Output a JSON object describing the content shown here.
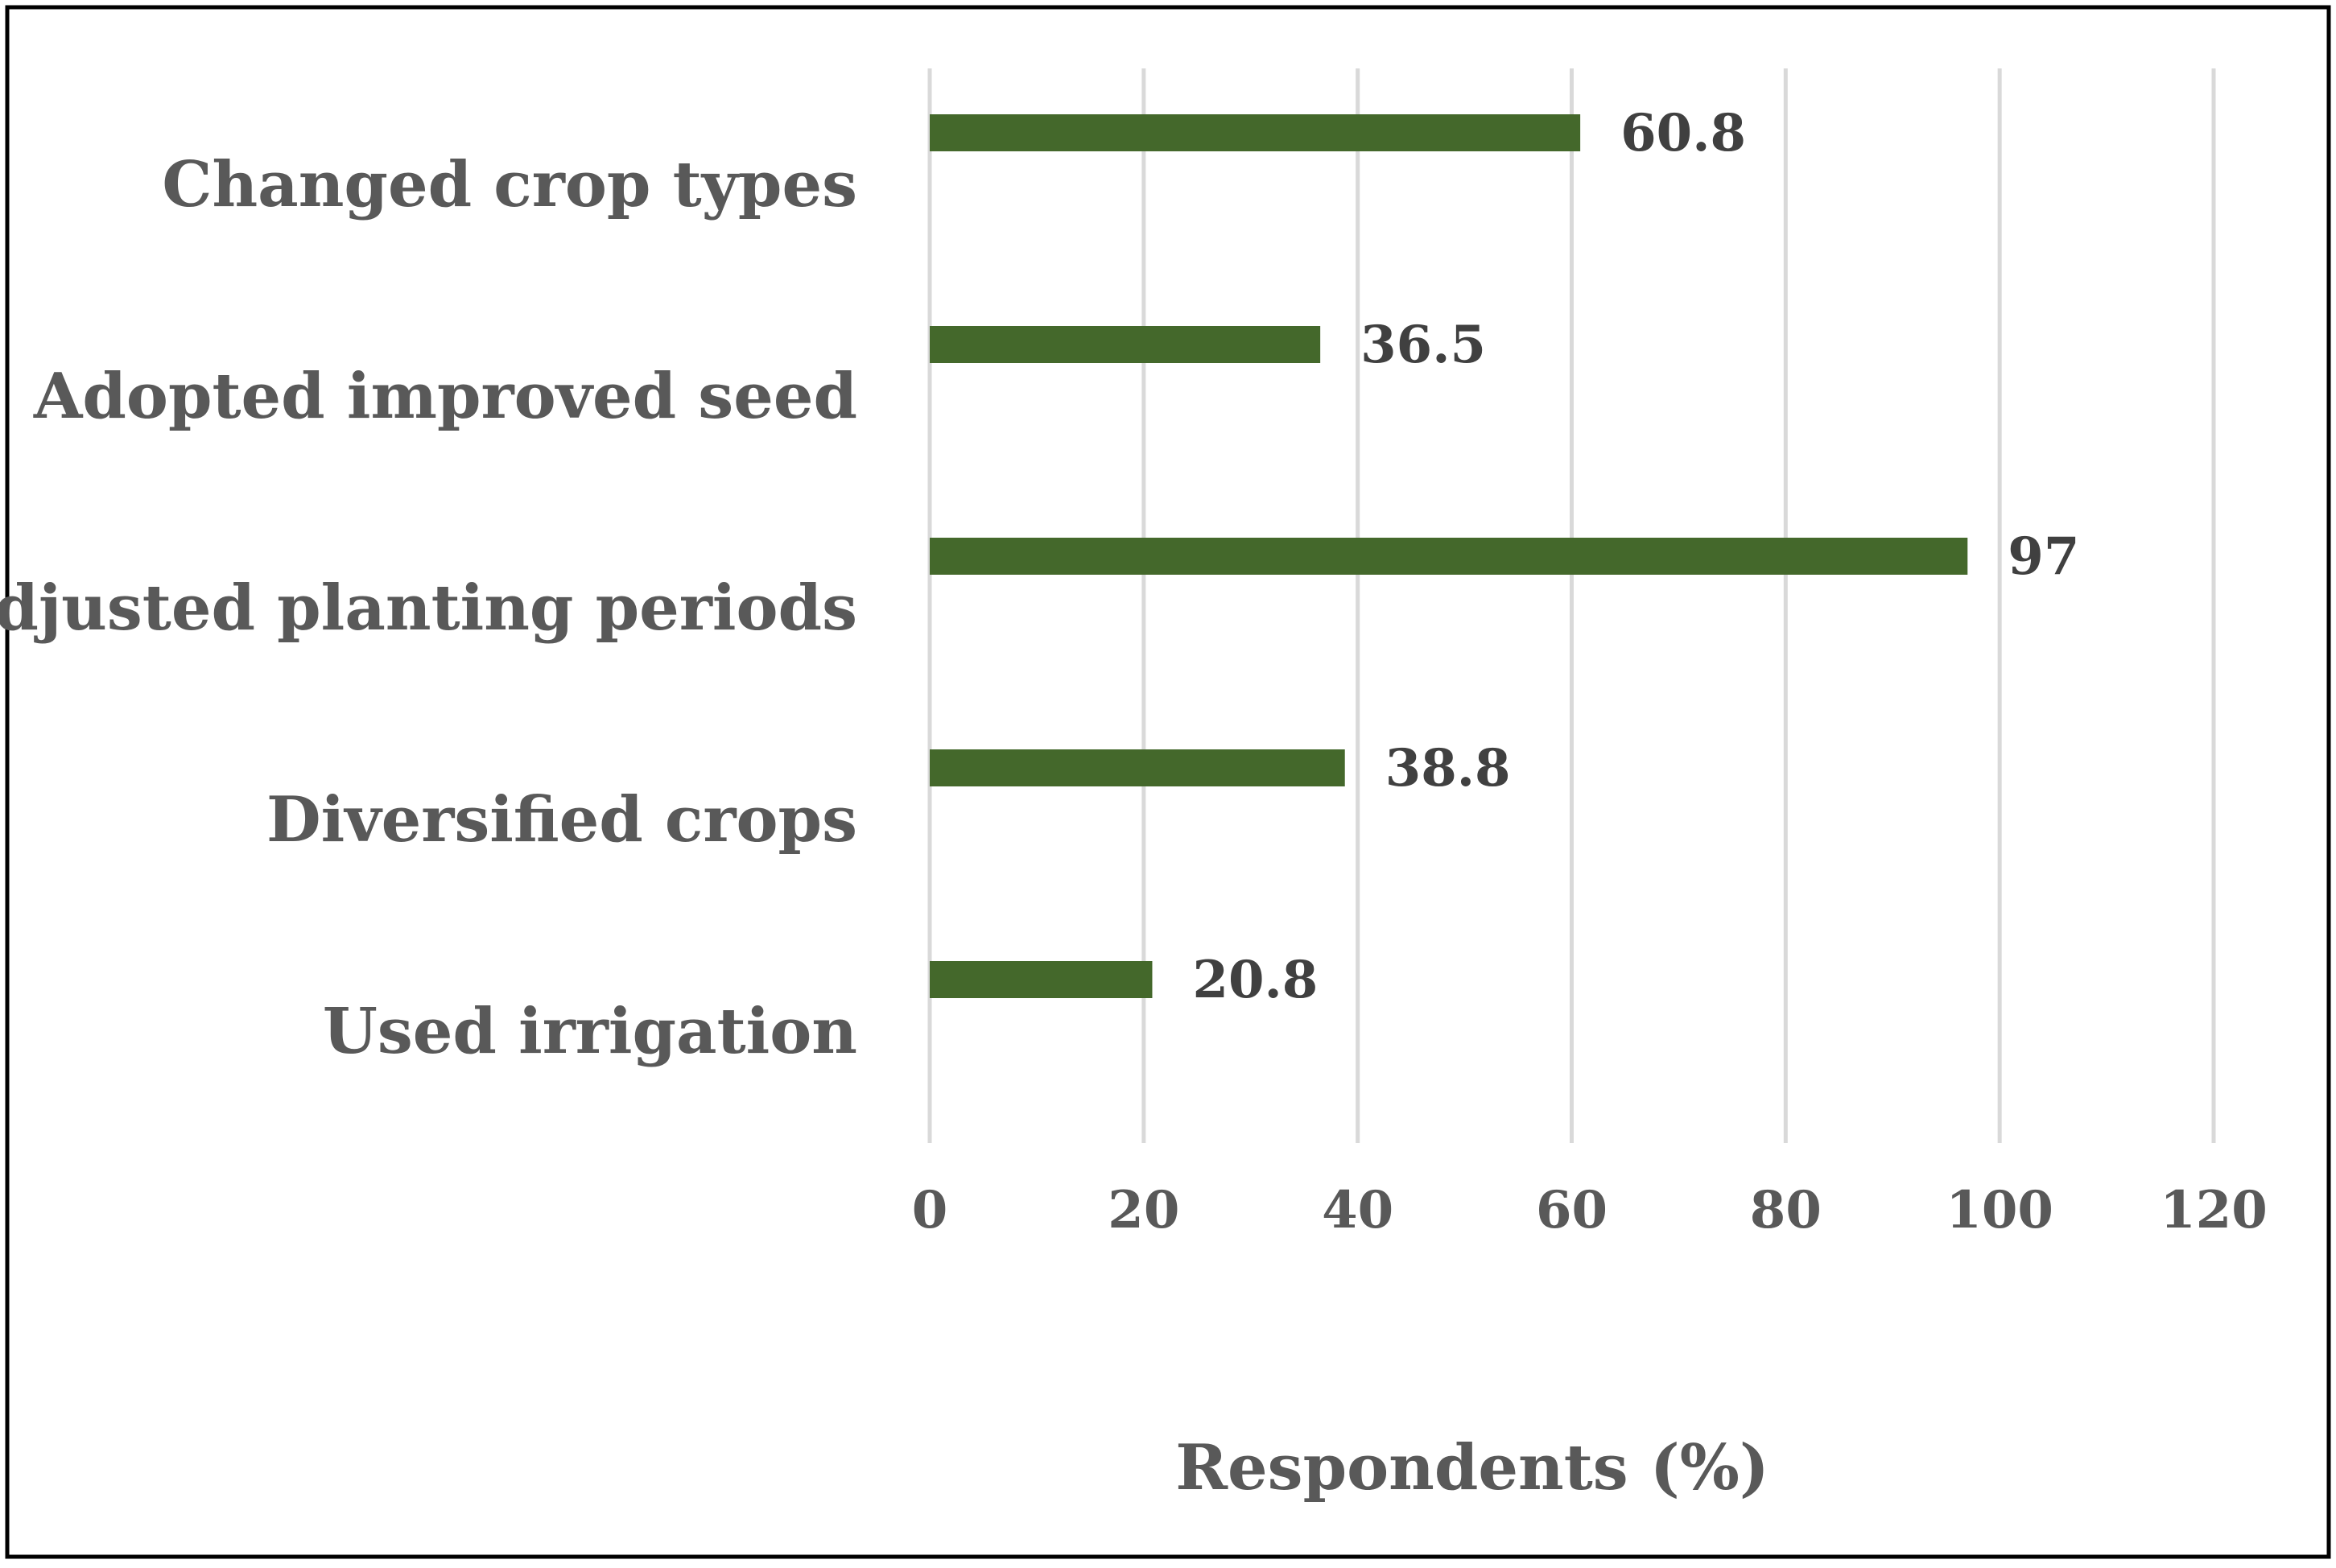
{
  "chart_data": {
    "type": "bar",
    "orientation": "horizontal",
    "categories": [
      "Changed crop types",
      "Adopted improved seed",
      "Adjusted planting periods",
      "Diversified crops",
      "Used irrigation"
    ],
    "values": [
      60.8,
      36.5,
      97,
      38.8,
      20.8
    ],
    "data_labels": [
      "60.8",
      "36.5",
      "97",
      "38.8",
      "20.8"
    ],
    "xlabel": "Respondents (%)",
    "ylabel": "",
    "title": "",
    "xlim": [
      0,
      120
    ],
    "xticks": [
      0,
      20,
      40,
      60,
      80,
      100,
      120
    ],
    "grid": "vertical",
    "legend": "none",
    "colors": {
      "bar": "#44682b",
      "gridline": "#d9d9d9",
      "frame": "#000000"
    }
  }
}
